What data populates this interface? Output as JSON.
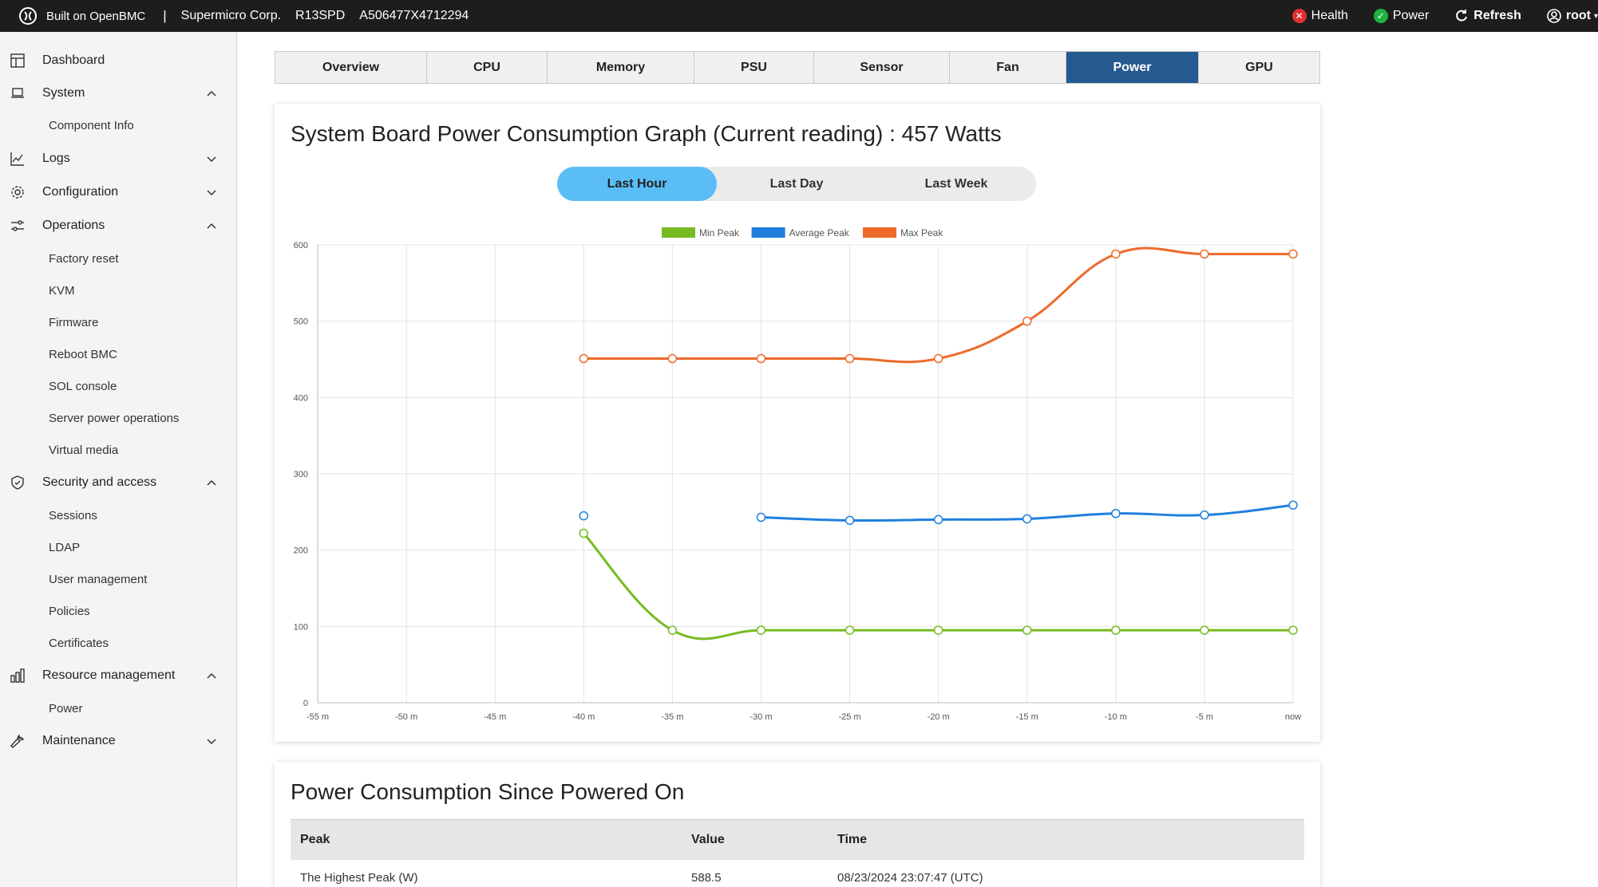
{
  "topbar": {
    "brand": "Built on OpenBMC",
    "separator": "|",
    "vendor": "Supermicro Corp.",
    "model": "R13SPD",
    "serial": "A506477X4712294",
    "health": "Health",
    "power": "Power",
    "refresh": "Refresh",
    "user": "root"
  },
  "sidebar": {
    "items": [
      {
        "label": "Dashboard"
      },
      {
        "label": "System"
      },
      {
        "label": "Component Info"
      },
      {
        "label": "Logs"
      },
      {
        "label": "Configuration"
      },
      {
        "label": "Operations"
      },
      {
        "label": "Factory reset"
      },
      {
        "label": "KVM"
      },
      {
        "label": "Firmware"
      },
      {
        "label": "Reboot BMC"
      },
      {
        "label": "SOL console"
      },
      {
        "label": "Server power operations"
      },
      {
        "label": "Virtual media"
      },
      {
        "label": "Security and access"
      },
      {
        "label": "Sessions"
      },
      {
        "label": "LDAP"
      },
      {
        "label": "User management"
      },
      {
        "label": "Policies"
      },
      {
        "label": "Certificates"
      },
      {
        "label": "Resource management"
      },
      {
        "label": "Power"
      },
      {
        "label": "Maintenance"
      }
    ]
  },
  "tabs": [
    {
      "label": "Overview"
    },
    {
      "label": "CPU"
    },
    {
      "label": "Memory"
    },
    {
      "label": "PSU"
    },
    {
      "label": "Sensor"
    },
    {
      "label": "Fan"
    },
    {
      "label": "Power"
    },
    {
      "label": "GPU"
    }
  ],
  "graph_card": {
    "title": "System Board Power Consumption Graph (Current reading) : 457 Watts",
    "ranges": [
      {
        "label": "Last Hour"
      },
      {
        "label": "Last Day"
      },
      {
        "label": "Last Week"
      }
    ]
  },
  "since_card": {
    "title": "Power Consumption Since Powered On",
    "headers": {
      "peak": "Peak",
      "value": "Value",
      "time": "Time"
    },
    "rows": [
      {
        "peak": "The Highest Peak (W)",
        "value": "588.5",
        "time": "08/23/2024 23:07:47 (UTC)"
      }
    ]
  },
  "colors": {
    "min_peak": "#77bb22",
    "average_peak": "#1f7fde",
    "max_peak": "#ee6a2a",
    "active_tab": "#245a8f",
    "active_range": "#5bbdf5"
  },
  "chart_data": {
    "type": "line",
    "x": [
      "-55 m",
      "-50 m",
      "-45 m",
      "-40 m",
      "-35 m",
      "-30 m",
      "-25 m",
      "-20 m",
      "-15 m",
      "-10 m",
      "-5 m",
      "now"
    ],
    "yticks": [
      0,
      100,
      200,
      300,
      400,
      500,
      600
    ],
    "ylim": [
      0,
      600
    ],
    "legend_position": "top",
    "grid": true,
    "series": [
      {
        "name": "Min Peak",
        "color": "#77bb22",
        "values": [
          null,
          null,
          null,
          222,
          95,
          95,
          95,
          95,
          95,
          95,
          95,
          95
        ]
      },
      {
        "name": "Average Peak",
        "color": "#1f7fde",
        "values": [
          null,
          null,
          null,
          245,
          null,
          243,
          239,
          240,
          241,
          248,
          246,
          259
        ]
      },
      {
        "name": "Max Peak",
        "color": "#ee6a2a",
        "values": [
          null,
          null,
          null,
          451,
          451,
          451,
          451,
          451,
          500,
          588,
          588,
          588
        ]
      }
    ]
  }
}
